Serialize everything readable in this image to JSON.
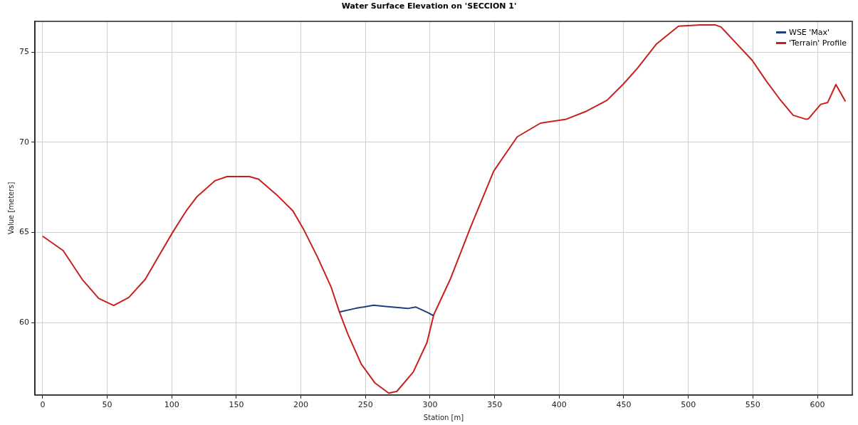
{
  "chart_data": {
    "type": "line",
    "title": "Water Surface Elevation on 'SECCION 1'",
    "xlabel": "Station [m]",
    "ylabel": "Value [meters]",
    "xlim": [
      -6,
      627
    ],
    "xticks": [
      0,
      50,
      100,
      150,
      200,
      250,
      300,
      350,
      400,
      450,
      500,
      550,
      600
    ],
    "ylim": [
      56,
      76.7
    ],
    "yticks": [
      60,
      65,
      70,
      75
    ],
    "grid": true,
    "legend": "top right",
    "series": [
      {
        "name": "WSE 'Max'",
        "color": "#1f3f7a",
        "x": [
          229.8,
          242.5,
          256.3,
          265.8,
          282.7,
          289,
          298.6,
          302.5
        ],
        "values": [
          60.6,
          60.8,
          60.97,
          60.9,
          60.79,
          60.87,
          60.55,
          60.4
        ]
      },
      {
        "name": "'Terrain' Profile",
        "color": "#c8201e",
        "x": [
          0,
          15.9,
          30.7,
          43.4,
          55,
          66.7,
          79.4,
          90,
          100.6,
          111.2,
          119.7,
          133.5,
          142.8,
          160,
          167.3,
          181.1,
          193.8,
          202.3,
          212.8,
          223.5,
          229.8,
          236.2,
          246.8,
          257.4,
          268,
          274.3,
          287,
          297.6,
          302.9,
          315.6,
          331.4,
          349.3,
          367.5,
          385.5,
          405.5,
          420.4,
          437.3,
          450,
          460.6,
          475.4,
          492.4,
          509.4,
          521,
          525.3,
          536.9,
          549.6,
          560.3,
          570.7,
          581.2,
          590.9,
          593,
          602.5,
          607.9,
          614.3,
          621.7
        ],
        "values": [
          64.8,
          64.0,
          62.4,
          61.35,
          60.96,
          61.4,
          62.4,
          63.7,
          65.0,
          66.2,
          67.0,
          67.87,
          68.1,
          68.1,
          67.95,
          67.1,
          66.2,
          65.15,
          63.65,
          61.96,
          60.6,
          59.4,
          57.7,
          56.66,
          56.1,
          56.2,
          57.27,
          58.9,
          60.45,
          62.4,
          65.3,
          68.4,
          70.3,
          71.06,
          71.28,
          71.7,
          72.34,
          73.25,
          74.1,
          75.45,
          76.43,
          76.5,
          76.5,
          76.39,
          75.5,
          74.53,
          73.4,
          72.4,
          71.5,
          71.28,
          71.3,
          72.1,
          72.2,
          73.2,
          72.26
        ]
      }
    ]
  }
}
